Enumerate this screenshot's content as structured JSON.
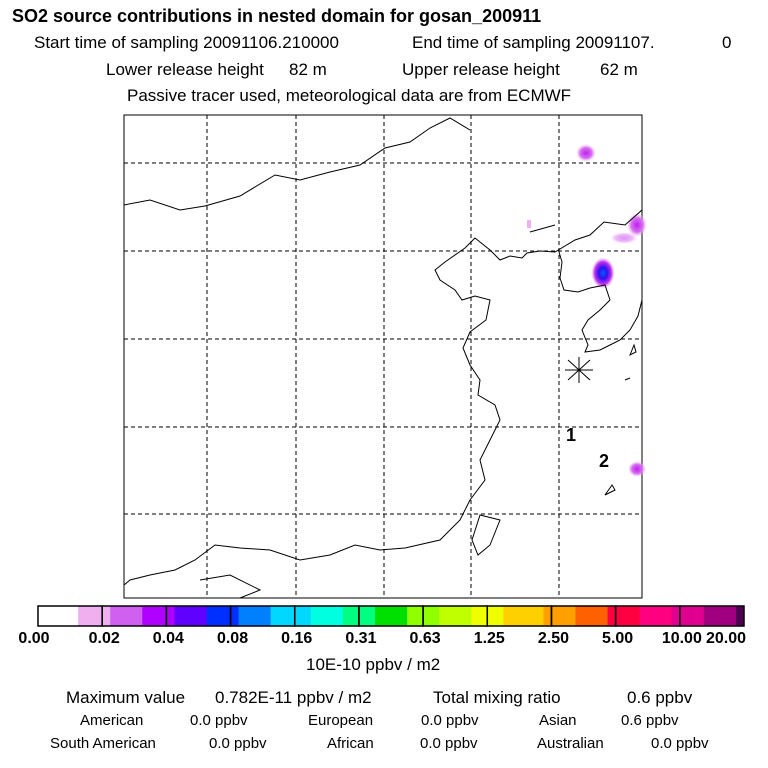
{
  "header": {
    "title": "SO2 source contributions in nested domain for gosan_200911",
    "start_label": "Start time of sampling 20091106.210000",
    "end_label": "End time of sampling 20091107.",
    "end_value": "0",
    "lower_label": "Lower release height",
    "lower_value": "82 m",
    "upper_label": "Upper release height",
    "upper_value": "62 m",
    "tracer_note": "Passive tracer used, meteorological data are from ECMWF"
  },
  "map": {
    "markers": [
      "1",
      "2"
    ],
    "station_marker": "asterisk-icon"
  },
  "chart_data": {
    "type": "heatmap",
    "title": "SO2 source contributions in nested domain for gosan_200911",
    "colorbar_ticks": [
      "0.00",
      "0.02",
      "0.04",
      "0.08",
      "0.16",
      "0.31",
      "0.63",
      "1.25",
      "2.50",
      "5.00",
      "10.00",
      "20.00"
    ],
    "colorbar_colors": [
      "#ffffff",
      "#f0b0f0",
      "#d060f0",
      "#b000ff",
      "#6000ff",
      "#0030ff",
      "#0080ff",
      "#00d8ff",
      "#00ffe0",
      "#00ff80",
      "#00e000",
      "#90ff00",
      "#c0ff00",
      "#f0ff00",
      "#ffd000",
      "#ffa000",
      "#ff6000",
      "#ff0040",
      "#ff0080",
      "#e00090",
      "#a00080",
      "#500050"
    ],
    "unit": "10E-10 ppbv / m2",
    "hotspots": [
      {
        "region": "northeast China (north)",
        "level": "0.02-0.04"
      },
      {
        "region": "northeast China border",
        "level": "0.02-0.04"
      },
      {
        "region": "north Korea / Pyongyang area",
        "level": "0.08-0.16"
      },
      {
        "region": "Japan south (Kyushu)",
        "level": "0.02-0.04"
      }
    ]
  },
  "footer": {
    "max_label": "Maximum value",
    "max_value": "0.782E-11 ppbv / m2",
    "total_label": "Total mixing ratio",
    "total_value": "0.6 ppbv",
    "regions": [
      {
        "name": "American",
        "value": "0.0 ppbv"
      },
      {
        "name": "European",
        "value": "0.0 ppbv"
      },
      {
        "name": "Asian",
        "value": "0.6 ppbv"
      },
      {
        "name": "South American",
        "value": "0.0 ppbv"
      },
      {
        "name": "African",
        "value": "0.0 ppbv"
      },
      {
        "name": "Australian",
        "value": "0.0 ppbv"
      }
    ]
  }
}
